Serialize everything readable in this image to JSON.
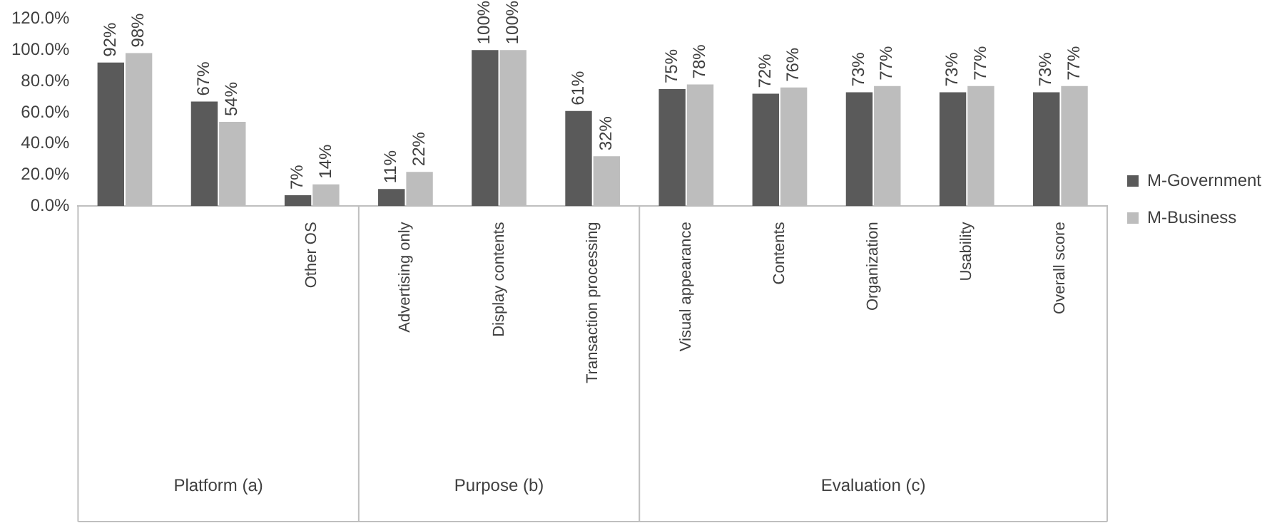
{
  "chart_data": {
    "type": "bar",
    "categories": [
      null,
      null,
      "Other OS",
      "Advertising only",
      "Display contents",
      "Transaction processing",
      "Visual appearance",
      "Contents",
      "Organization",
      "Usability",
      "Overall score"
    ],
    "series": [
      {
        "name": "M-Government",
        "color": "#5a5a5a",
        "values": [
          92,
          67,
          7,
          11,
          100,
          61,
          75,
          72,
          73,
          73,
          73
        ],
        "value_labels": [
          "92%",
          "67%",
          "7%",
          "11%",
          "100%",
          "61%",
          "75%",
          "72%",
          "73%",
          "73%",
          "73%"
        ]
      },
      {
        "name": "M-Business",
        "color": "#bdbdbd",
        "values": [
          98,
          54,
          14,
          22,
          100,
          32,
          78,
          76,
          77,
          77,
          77
        ],
        "value_labels": [
          "98%",
          "54%",
          "14%",
          "22%",
          "100%",
          "32%",
          "78%",
          "76%",
          "77%",
          "77%",
          "77%"
        ]
      }
    ],
    "ylim": [
      0,
      120
    ],
    "yticks": [
      {
        "value": 0,
        "label": "0.0%"
      },
      {
        "value": 20,
        "label": "20.0%"
      },
      {
        "value": 40,
        "label": "40.0%"
      },
      {
        "value": 60,
        "label": "60.0%"
      },
      {
        "value": 80,
        "label": "80.0%"
      },
      {
        "value": 100,
        "label": "100.0%"
      },
      {
        "value": 120,
        "label": "120.0%"
      }
    ],
    "grid": false,
    "legend": "right",
    "annotations": [
      "Platform (a)",
      "Purpose (b)",
      "Evaluation (c)"
    ]
  }
}
